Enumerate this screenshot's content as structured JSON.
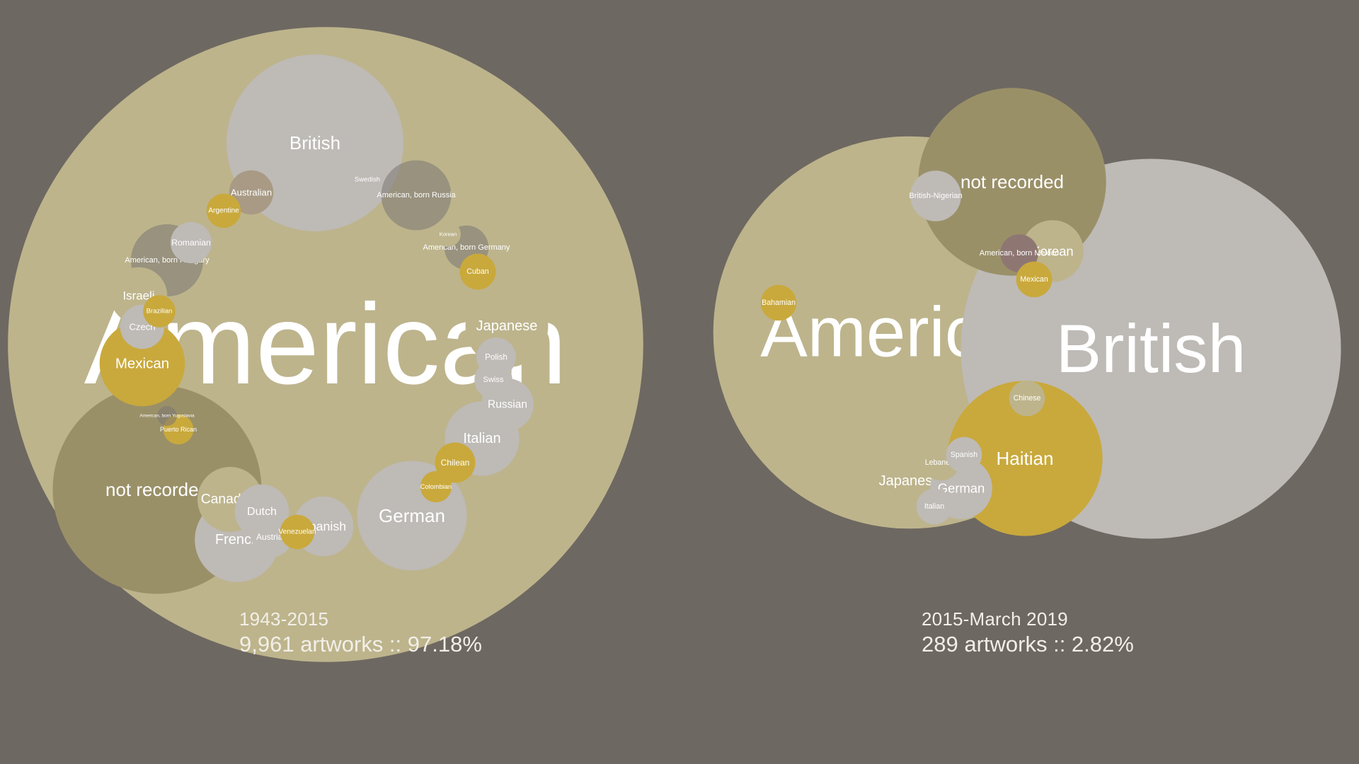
{
  "colors": {
    "background": "#6e6862",
    "khaki_light": "#bdb48c",
    "khaki_dark": "#9a9068",
    "gold": "#c9a93c",
    "grey": "#bebab6",
    "dark_grey": "#7a7673",
    "mauve": "#8e7773",
    "tan": "#a89a84"
  },
  "chart_data": [
    {
      "type": "bubble",
      "period": "1943-2015",
      "stat": "9,961 artworks :: 97.18%",
      "bubbles": [
        {
          "label": "American",
          "value": 6200,
          "color": "khaki_light"
        },
        {
          "label": "British",
          "value": 480,
          "color": "grey"
        },
        {
          "label": "not recorded",
          "value": 670,
          "color": "khaki_dark"
        },
        {
          "label": "German",
          "value": 185,
          "color": "grey"
        },
        {
          "label": "French",
          "value": 110,
          "color": "grey"
        },
        {
          "label": "Mexican",
          "value": 112,
          "color": "gold"
        },
        {
          "label": "Japanese",
          "value": 105,
          "color": "khaki_light"
        },
        {
          "label": "Italian",
          "value": 85,
          "color": "grey"
        },
        {
          "label": "American, born Hungary",
          "value": 80,
          "color": "dark_grey"
        },
        {
          "label": "American, born Russia",
          "value": 75,
          "color": "dark_grey"
        },
        {
          "label": "Canadian",
          "value": 65,
          "color": "khaki_light"
        },
        {
          "label": "Spanish",
          "value": 55,
          "color": "grey"
        },
        {
          "label": "Dutch",
          "value": 45,
          "color": "grey"
        },
        {
          "label": "Israeli",
          "value": 50,
          "color": "khaki_light"
        },
        {
          "label": "Russian",
          "value": 42,
          "color": "grey"
        },
        {
          "label": "Czech",
          "value": 30,
          "color": "grey"
        },
        {
          "label": "Australian",
          "value": 30,
          "color": "tan"
        },
        {
          "label": "American, born Germany",
          "value": 30,
          "color": "dark_grey"
        },
        {
          "label": "Romanian",
          "value": 26,
          "color": "grey"
        },
        {
          "label": "Austrian",
          "value": 25,
          "color": "grey"
        },
        {
          "label": "Chilean",
          "value": 25,
          "color": "gold"
        },
        {
          "label": "Polish",
          "value": 24,
          "color": "grey"
        },
        {
          "label": "Swiss",
          "value": 22,
          "color": "grey"
        },
        {
          "label": "Cuban",
          "value": 20,
          "color": "gold"
        },
        {
          "label": "Venezuelan",
          "value": 18,
          "color": "gold"
        },
        {
          "label": "Argentine",
          "value": 18,
          "color": "gold"
        },
        {
          "label": "Brazilian",
          "value": 16,
          "color": "gold"
        },
        {
          "label": "Colombian",
          "value": 15,
          "color": "gold"
        },
        {
          "label": "Puerto Rican",
          "value": 14,
          "color": "gold"
        },
        {
          "label": "Swedish",
          "value": 16,
          "color": "grey"
        },
        {
          "label": "Korean",
          "value": 10,
          "color": "khaki_light"
        },
        {
          "label": "American, born Yugoslavia",
          "value": 6,
          "color": "dark_grey"
        }
      ]
    },
    {
      "type": "bubble",
      "period": "2015-March 2019",
      "stat": "289 artworks :: 2.82%",
      "bubbles": [
        {
          "label": "American",
          "value": 96,
          "color": "khaki_light"
        },
        {
          "label": "British",
          "value": 90,
          "color": "grey"
        },
        {
          "label": "not recorded",
          "value": 22,
          "color": "khaki_dark"
        },
        {
          "label": "Haitian",
          "value": 15,
          "color": "gold"
        },
        {
          "label": "Japanese",
          "value": 3.3,
          "color": "khaki_light"
        },
        {
          "label": "German",
          "value": 2.4,
          "color": "grey"
        },
        {
          "label": "Korean",
          "value": 2.4,
          "color": "khaki_light"
        },
        {
          "label": "British-Nigerian",
          "value": 1.6,
          "color": "grey"
        },
        {
          "label": "American, born Mexico",
          "value": 0.9,
          "color": "mauve"
        },
        {
          "label": "Mexican",
          "value": 0.8,
          "color": "gold"
        },
        {
          "label": "Bahamian",
          "value": 0.8,
          "color": "gold"
        },
        {
          "label": "Chinese",
          "value": 0.8,
          "color": "khaki_light"
        },
        {
          "label": "Lebanese",
          "value": 0.8,
          "color": "khaki_light"
        },
        {
          "label": "Spanish",
          "value": 0.8,
          "color": "grey"
        },
        {
          "label": "Italian",
          "value": 0.8,
          "color": "grey"
        }
      ]
    }
  ]
}
